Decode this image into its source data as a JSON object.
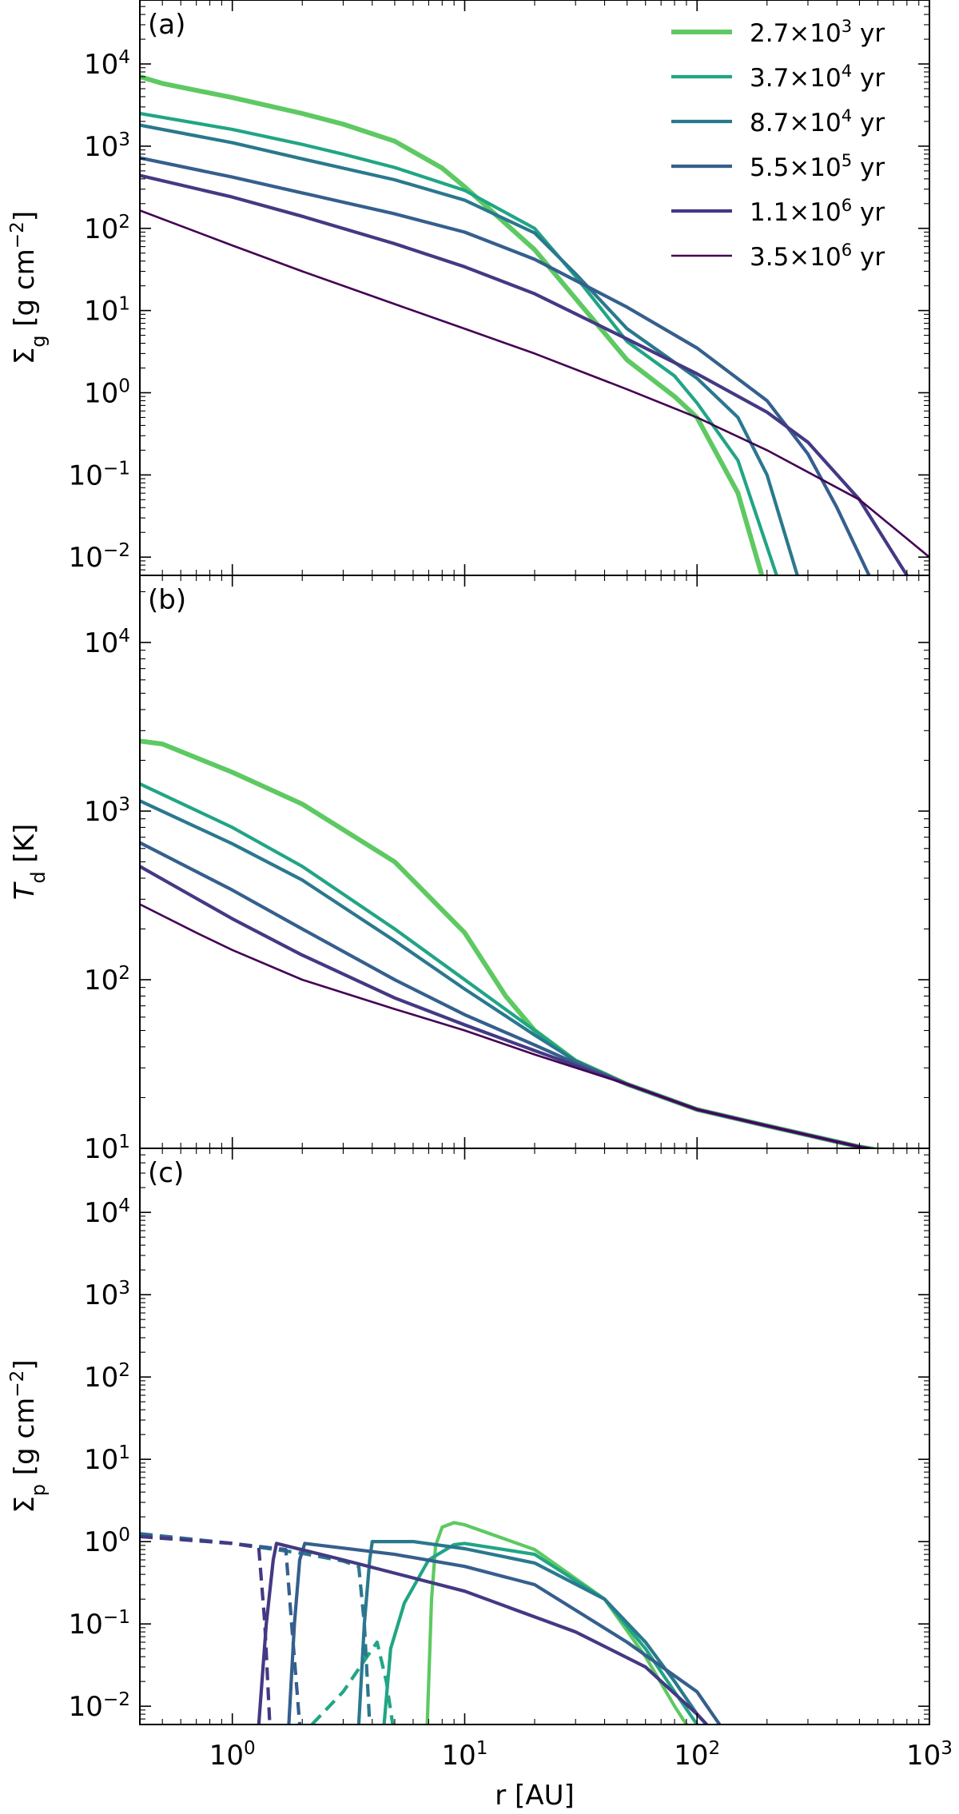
{
  "chart_data": [
    {
      "type": "line",
      "panel_label": "(a)",
      "ylabel": "Σ_g [g cm^-2]",
      "xlabel": "",
      "xscale": "log",
      "yscale": "log",
      "xlim": [
        0.4,
        1000
      ],
      "ylim": [
        0.006,
        60000
      ],
      "y_tick_labels": [
        "10^-2",
        "10^-1",
        "10^0",
        "10^1",
        "10^2",
        "10^3",
        "10^4"
      ],
      "legend": {
        "placement": "top-right",
        "entries": [
          "2.7×10^3 yr",
          "3.7×10^4 yr",
          "8.7×10^4 yr",
          "5.5×10^5 yr",
          "1.1×10^6 yr",
          "3.5×10^6 yr"
        ]
      },
      "series": [
        {
          "name": "2.7×10^3 yr",
          "color": "#5ec962",
          "linestyle": "solid",
          "x": [
            0.4,
            0.5,
            1,
            2,
            3,
            5,
            8,
            10,
            20,
            30,
            50,
            80,
            100,
            150,
            190
          ],
          "y": [
            7000,
            5800,
            3900,
            2500,
            1850,
            1150,
            540,
            320,
            55,
            14,
            2.5,
            0.9,
            0.5,
            0.06,
            0.006
          ]
        },
        {
          "name": "3.7×10^4 yr",
          "color": "#21a585",
          "linestyle": "solid",
          "x": [
            0.4,
            1,
            2,
            3,
            5,
            10,
            20,
            30,
            50,
            80,
            100,
            150,
            220
          ],
          "y": [
            2500,
            1600,
            1050,
            800,
            550,
            290,
            100,
            26,
            4.2,
            1.6,
            0.75,
            0.15,
            0.006
          ]
        },
        {
          "name": "8.7×10^4 yr",
          "color": "#2a788e",
          "linestyle": "solid",
          "x": [
            0.4,
            1,
            2,
            5,
            10,
            20,
            30,
            50,
            100,
            150,
            200,
            270
          ],
          "y": [
            1800,
            1100,
            700,
            390,
            220,
            88,
            28,
            6,
            1.5,
            0.5,
            0.1,
            0.006
          ]
        },
        {
          "name": "5.5×10^5 yr",
          "color": "#355f8d",
          "linestyle": "solid",
          "x": [
            0.4,
            1,
            2,
            5,
            10,
            20,
            50,
            100,
            200,
            300,
            400,
            550
          ],
          "y": [
            720,
            420,
            270,
            150,
            90,
            42,
            11,
            3.5,
            0.8,
            0.18,
            0.04,
            0.006
          ]
        },
        {
          "name": "1.1×10^6 yr",
          "color": "#443983",
          "linestyle": "solid",
          "x": [
            0.4,
            1,
            2,
            5,
            10,
            20,
            50,
            100,
            200,
            300,
            500,
            800
          ],
          "y": [
            440,
            240,
            140,
            65,
            34,
            16,
            4.5,
            1.7,
            0.58,
            0.25,
            0.05,
            0.006
          ]
        },
        {
          "name": "3.5×10^6 yr",
          "color": "#440154",
          "linestyle": "solid",
          "x": [
            0.4,
            1,
            2,
            5,
            10,
            20,
            50,
            100,
            200,
            500,
            1000
          ],
          "y": [
            165,
            62,
            30,
            12,
            6,
            3,
            1.1,
            0.5,
            0.2,
            0.05,
            0.01
          ]
        }
      ]
    },
    {
      "type": "line",
      "panel_label": "(b)",
      "ylabel": "T_d [K]",
      "xlabel": "",
      "xscale": "log",
      "yscale": "log",
      "xlim": [
        0.4,
        1000
      ],
      "ylim": [
        10,
        25000
      ],
      "y_tick_labels": [
        "10^1",
        "10^2",
        "10^3",
        "10^4"
      ],
      "series": [
        {
          "name": "2.7×10^3 yr",
          "color": "#5ec962",
          "linestyle": "solid",
          "x": [
            0.4,
            0.5,
            1,
            2,
            5,
            10,
            15,
            20,
            30,
            50,
            100,
            200,
            500,
            1000
          ],
          "y": [
            2600,
            2500,
            1700,
            1100,
            500,
            190,
            80,
            50,
            33,
            24,
            17,
            13.6,
            10.2,
            8.7
          ]
        },
        {
          "name": "3.7×10^4 yr",
          "color": "#21a585",
          "linestyle": "solid",
          "x": [
            0.4,
            1,
            2,
            5,
            10,
            20,
            30,
            50,
            100,
            200,
            500,
            1000
          ],
          "y": [
            1450,
            800,
            470,
            200,
            100,
            50,
            33,
            24,
            17,
            13.6,
            10.2,
            8.7
          ]
        },
        {
          "name": "8.7×10^4 yr",
          "color": "#2a788e",
          "linestyle": "solid",
          "x": [
            0.4,
            1,
            2,
            5,
            10,
            20,
            30,
            50,
            100,
            200,
            500,
            1000
          ],
          "y": [
            1150,
            640,
            390,
            170,
            88,
            47,
            33,
            24,
            17,
            13.6,
            10.2,
            8.7
          ]
        },
        {
          "name": "5.5×10^5 yr",
          "color": "#355f8d",
          "linestyle": "solid",
          "x": [
            0.4,
            1,
            2,
            5,
            10,
            20,
            30,
            50,
            100,
            200,
            500,
            1000
          ],
          "y": [
            650,
            340,
            200,
            100,
            62,
            41,
            32,
            24,
            17,
            13.6,
            10.2,
            8.7
          ]
        },
        {
          "name": "1.1×10^6 yr",
          "color": "#443983",
          "linestyle": "solid",
          "x": [
            0.4,
            1,
            2,
            5,
            10,
            20,
            30,
            50,
            100,
            200,
            500,
            1000
          ],
          "y": [
            470,
            230,
            140,
            78,
            54,
            38,
            31,
            24,
            17,
            13.6,
            10.2,
            8.7
          ]
        },
        {
          "name": "3.5×10^6 yr",
          "color": "#440154",
          "linestyle": "solid",
          "x": [
            0.4,
            0.7,
            1,
            2,
            5,
            10,
            20,
            50,
            100,
            200,
            500,
            1000
          ],
          "y": [
            280,
            190,
            150,
            100,
            67,
            50,
            36,
            24,
            17,
            13.6,
            10.2,
            8.7
          ]
        }
      ]
    },
    {
      "type": "line",
      "panel_label": "(c)",
      "ylabel": "Σ_p [g cm^-2]",
      "xlabel": "r [AU]",
      "xscale": "log",
      "yscale": "log",
      "xlim": [
        0.4,
        1000
      ],
      "ylim": [
        0.006,
        60000
      ],
      "x_tick_labels": [
        "10^0",
        "10^1",
        "10^2",
        "10^3"
      ],
      "y_tick_labels": [
        "10^-2",
        "10^-1",
        "10^0",
        "10^1",
        "10^2",
        "10^3",
        "10^4"
      ],
      "series": [
        {
          "name": "2.7×10^3 yr",
          "color": "#5ec962",
          "linestyle": "solid",
          "x": [
            6.9,
            7.2,
            7.5,
            8,
            9,
            10,
            20,
            40,
            60,
            80,
            90
          ],
          "y": [
            0.006,
            0.2,
            0.9,
            1.5,
            1.7,
            1.6,
            0.8,
            0.2,
            0.04,
            0.01,
            0.006
          ]
        },
        {
          "name": "3.7×10^4 yr",
          "color": "#21a585",
          "linestyle": "solid",
          "x": [
            4.5,
            4.8,
            5.5,
            7,
            9,
            10,
            20,
            40,
            60,
            80,
            100
          ],
          "y": [
            0.006,
            0.05,
            0.18,
            0.6,
            0.92,
            0.95,
            0.7,
            0.2,
            0.05,
            0.015,
            0.006
          ]
        },
        {
          "name": "3.7×10^4 yr (dashed)",
          "color": "#21a585",
          "linestyle": "dashed",
          "x": [
            2.2,
            3,
            3.8,
            4.2,
            4.6,
            4.9
          ],
          "y": [
            0.006,
            0.015,
            0.04,
            0.06,
            0.02,
            0.006
          ]
        },
        {
          "name": "8.7×10^4 yr",
          "color": "#2a788e",
          "linestyle": "solid",
          "x": [
            3.5,
            3.7,
            3.9,
            4,
            6,
            10,
            20,
            40,
            60,
            80,
            100,
            110
          ],
          "y": [
            0.006,
            0.1,
            0.6,
            1,
            1.0,
            0.82,
            0.55,
            0.2,
            0.06,
            0.02,
            0.008,
            0.006
          ]
        },
        {
          "name": "8.7×10^4 yr (dashed)",
          "color": "#2a788e",
          "linestyle": "dashed",
          "x": [
            0.4,
            1,
            2,
            3,
            3.5,
            3.7,
            3.9
          ],
          "y": [
            1.25,
            0.95,
            0.72,
            0.58,
            0.5,
            0.1,
            0.006
          ]
        },
        {
          "name": "5.5×10^5 yr",
          "color": "#355f8d",
          "linestyle": "solid",
          "x": [
            1.75,
            1.85,
            1.95,
            2.05,
            5,
            10,
            20,
            50,
            100,
            125
          ],
          "y": [
            0.006,
            0.1,
            0.6,
            0.95,
            0.7,
            0.5,
            0.3,
            0.06,
            0.015,
            0.006
          ]
        },
        {
          "name": "5.5×10^5 yr (dashed)",
          "color": "#355f8d",
          "linestyle": "dashed",
          "x": [
            0.4,
            1,
            1.7,
            1.8,
            1.95
          ],
          "y": [
            1.2,
            0.95,
            0.8,
            0.1,
            0.006
          ]
        },
        {
          "name": "1.1×10^6 yr",
          "color": "#443983",
          "linestyle": "solid",
          "x": [
            1.3,
            1.4,
            1.5,
            1.55,
            3,
            10,
            30,
            60,
            100,
            110
          ],
          "y": [
            0.006,
            0.1,
            0.6,
            0.95,
            0.6,
            0.25,
            0.08,
            0.03,
            0.008,
            0.006
          ]
        },
        {
          "name": "1.1×10^6 yr (dashed)",
          "color": "#443983",
          "linestyle": "dashed",
          "x": [
            0.4,
            1,
            1.3,
            1.38,
            1.45
          ],
          "y": [
            1.15,
            0.95,
            0.85,
            0.1,
            0.006
          ]
        }
      ]
    }
  ]
}
